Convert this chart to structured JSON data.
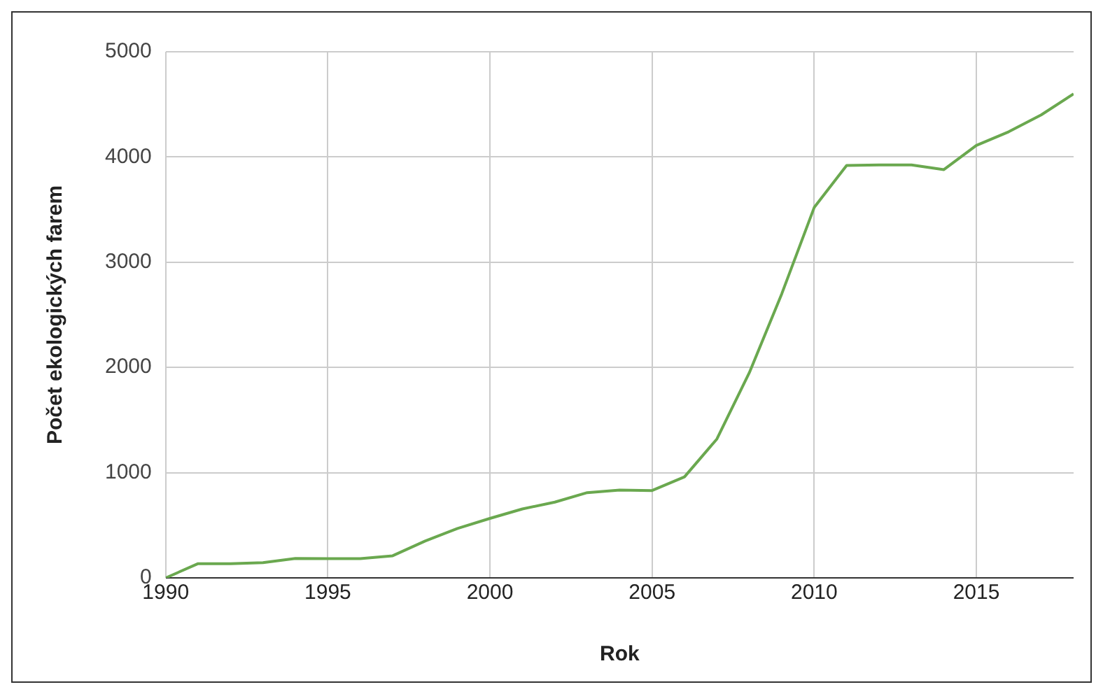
{
  "chart_data": {
    "type": "line",
    "xlabel": "Rok",
    "ylabel": "Počet ekologických farem",
    "x": [
      1990,
      1991,
      1992,
      1993,
      1994,
      1995,
      1996,
      1997,
      1998,
      1999,
      2000,
      2001,
      2002,
      2003,
      2004,
      2005,
      2006,
      2007,
      2008,
      2009,
      2010,
      2011,
      2012,
      2013,
      2014,
      2015,
      2016,
      2017,
      2018
    ],
    "series": [
      {
        "color": "#6aa84f",
        "values": [
          0,
          135,
          135,
          145,
          185,
          183,
          183,
          210,
          350,
          470,
          565,
          655,
          720,
          810,
          835,
          830,
          960,
          1320,
          1950,
          2700,
          3520,
          3920,
          3925,
          3925,
          3880,
          4110,
          4240,
          4400,
          4600
        ]
      }
    ],
    "xlim": [
      1990,
      2018
    ],
    "xticks": [
      1990,
      1995,
      2000,
      2005,
      2010,
      2015
    ],
    "ylim": [
      0,
      5000
    ],
    "yticks": [
      0,
      1000,
      2000,
      3000,
      4000,
      5000
    ],
    "grid": true,
    "legend": false,
    "marker": "none",
    "line_style": "solid"
  }
}
